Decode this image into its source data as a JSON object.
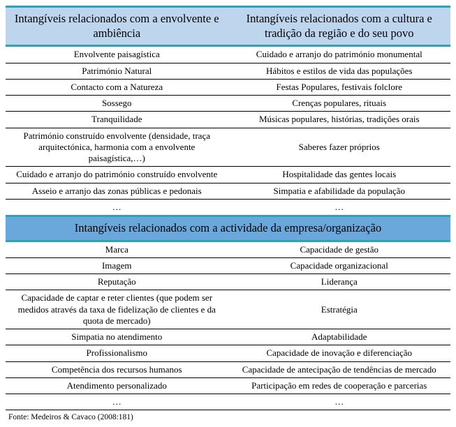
{
  "section1": {
    "left_header": "Intangíveis relacionados com a envolvente e ambiência",
    "right_header": "Intangíveis relacionados com a cultura e tradição da região e do seu povo",
    "rows": [
      {
        "l": "Envolvente paisagística",
        "r": "Cuidado e arranjo do património monumental"
      },
      {
        "l": "Património Natural",
        "r": "Hábitos e estilos de vida das populações"
      },
      {
        "l": "Contacto com a Natureza",
        "r": "Festas Populares, festivais folclore"
      },
      {
        "l": "Sossego",
        "r": "Crenças populares, rituais"
      },
      {
        "l": "Tranquilidade",
        "r": "Músicas populares, histórias, tradições orais"
      },
      {
        "l": "Património construído envolvente (densidade, traça arquitectónica, harmonia com a envolvente paisagística,…)",
        "r": "Saberes fazer próprios"
      },
      {
        "l": "Cuidado e arranjo do património construído envolvente",
        "r": "Hospitalidade das gentes locais"
      },
      {
        "l": "Asseio e arranjo das zonas públicas e pedonais",
        "r": "Simpatia e afabilidade da população"
      },
      {
        "l": "…",
        "r": "…"
      }
    ]
  },
  "section2": {
    "header": "Intangíveis relacionados com a actividade da empresa/organização",
    "rows": [
      {
        "l": "Marca",
        "r": "Capacidade de gestão"
      },
      {
        "l": "Imagem",
        "r": "Capacidade organizacional"
      },
      {
        "l": "Reputação",
        "r": "Liderança"
      },
      {
        "l": "Capacidade de captar e reter clientes (que podem ser medidos através da taxa de fidelização de clientes e da quota de mercado)",
        "r": "Estratégia"
      },
      {
        "l": "Simpatia no atendimento",
        "r": "Adaptabilidade"
      },
      {
        "l": "Profissionalismo",
        "r": "Capacidade de inovação e diferenciação"
      },
      {
        "l": "Competência dos recursos humanos",
        "r": "Capacidade de antecipação de tendências de mercado"
      },
      {
        "l": "Atendimento personalizado",
        "r": "Participação em redes de cooperação e parcerias"
      },
      {
        "l": "…",
        "r": "…"
      }
    ]
  },
  "source": "Fonte: Medeiros & Cavaco (2008:181)",
  "style": {
    "header_bg_light": "#bdd6ee",
    "header_bg_mid": "#6aa8dc",
    "accent_border": "#2ea3b7",
    "font_family": "Times New Roman",
    "body_fontsize_pt": 10,
    "header_fontsize_pt": 12.5,
    "source_fontsize_pt": 9
  }
}
